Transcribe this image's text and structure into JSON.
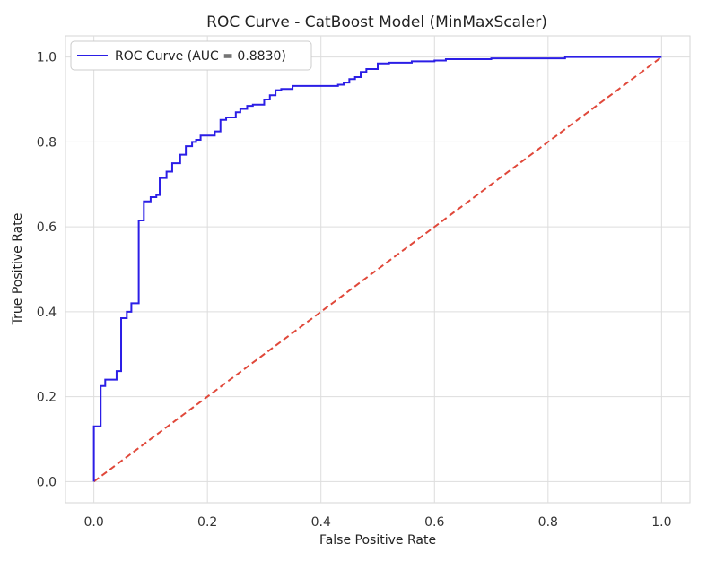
{
  "chart_data": {
    "type": "line",
    "title": "ROC Curve - CatBoost Model (MinMaxScaler)",
    "xlabel": "False Positive Rate",
    "ylabel": "True Positive Rate",
    "xlim": [
      -0.05,
      1.05
    ],
    "ylim": [
      -0.05,
      1.05
    ],
    "xticks": [
      0.0,
      0.2,
      0.4,
      0.6,
      0.8,
      1.0
    ],
    "yticks": [
      0.0,
      0.2,
      0.4,
      0.6,
      0.8,
      1.0
    ],
    "xtick_labels": [
      "0.0",
      "0.2",
      "0.4",
      "0.6",
      "0.8",
      "1.0"
    ],
    "ytick_labels": [
      "0.0",
      "0.2",
      "0.4",
      "0.6",
      "0.8",
      "1.0"
    ],
    "grid": true,
    "legend_position": "top-left",
    "series": [
      {
        "name": "ROC Curve (AUC = 0.8830)",
        "color": "#2b1ee6",
        "style": "solid",
        "x": [
          0.0,
          0.0,
          0.012,
          0.012,
          0.02,
          0.02,
          0.04,
          0.04,
          0.048,
          0.048,
          0.058,
          0.058,
          0.066,
          0.066,
          0.079,
          0.079,
          0.088,
          0.088,
          0.1,
          0.1,
          0.11,
          0.11,
          0.116,
          0.116,
          0.128,
          0.128,
          0.138,
          0.138,
          0.152,
          0.152,
          0.162,
          0.162,
          0.173,
          0.173,
          0.18,
          0.18,
          0.188,
          0.188,
          0.213,
          0.213,
          0.223,
          0.223,
          0.233,
          0.233,
          0.25,
          0.25,
          0.258,
          0.258,
          0.27,
          0.27,
          0.28,
          0.28,
          0.3,
          0.3,
          0.31,
          0.31,
          0.32,
          0.32,
          0.33,
          0.33,
          0.35,
          0.35,
          0.43,
          0.43,
          0.44,
          0.44,
          0.45,
          0.45,
          0.46,
          0.46,
          0.47,
          0.47,
          0.48,
          0.48,
          0.5,
          0.5,
          0.52,
          0.52,
          0.56,
          0.56,
          0.6,
          0.6,
          0.62,
          0.62,
          0.7,
          0.7,
          0.83,
          0.83,
          1.0
        ],
        "y": [
          0.0,
          0.13,
          0.13,
          0.225,
          0.225,
          0.24,
          0.24,
          0.26,
          0.26,
          0.385,
          0.385,
          0.4,
          0.4,
          0.42,
          0.42,
          0.615,
          0.615,
          0.66,
          0.66,
          0.67,
          0.67,
          0.675,
          0.675,
          0.715,
          0.715,
          0.73,
          0.73,
          0.75,
          0.75,
          0.77,
          0.77,
          0.79,
          0.79,
          0.8,
          0.8,
          0.805,
          0.805,
          0.815,
          0.815,
          0.825,
          0.825,
          0.852,
          0.852,
          0.858,
          0.858,
          0.87,
          0.87,
          0.878,
          0.878,
          0.885,
          0.885,
          0.888,
          0.888,
          0.9,
          0.9,
          0.91,
          0.91,
          0.922,
          0.922,
          0.925,
          0.925,
          0.932,
          0.932,
          0.935,
          0.935,
          0.94,
          0.94,
          0.948,
          0.948,
          0.953,
          0.953,
          0.965,
          0.965,
          0.972,
          0.972,
          0.985,
          0.985,
          0.987,
          0.987,
          0.99,
          0.99,
          0.992,
          0.992,
          0.995,
          0.995,
          0.997,
          0.997,
          1.0,
          1.0
        ]
      },
      {
        "name": "",
        "color": "#e0483a",
        "style": "dashed",
        "x": [
          0.0,
          1.0
        ],
        "y": [
          0.0,
          1.0
        ]
      }
    ]
  }
}
